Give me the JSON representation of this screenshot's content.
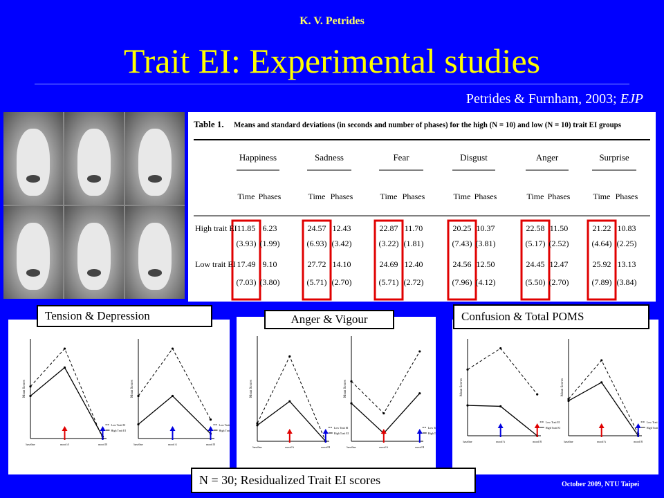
{
  "header": {
    "author": "K. V. Petrides",
    "title": "Trait EI: Experimental studies",
    "citation_text": "Petrides & Furnham, 2003; ",
    "citation_journal": "EJP"
  },
  "table": {
    "caption_prefix": "Table 1.",
    "caption": "Means and standard deviations (in seconds and number of phases) for the high (N = 10) and low (N = 10) trait EI groups",
    "emotions": [
      "Happiness",
      "Sadness",
      "Fear",
      "Disgust",
      "Anger",
      "Surprise"
    ],
    "subheaders": [
      "Time",
      "Phases"
    ],
    "rows": [
      {
        "label": "High trait EI",
        "means": [
          "11.85",
          "6.23",
          "24.57",
          "12.43",
          "22.87",
          "11.70",
          "20.25",
          "10.37",
          "22.58",
          "11.50",
          "21.22",
          "10.83"
        ],
        "sds": [
          "(3.93)",
          "(1.99)",
          "(6.93)",
          "(3.42)",
          "(3.22)",
          "(1.81)",
          "(7.43)",
          "(3.81)",
          "(5.17)",
          "(2.52)",
          "(4.64)",
          "(2.25)"
        ]
      },
      {
        "label": "Low trait EI",
        "means": [
          "17.49",
          "9.10",
          "27.72",
          "14.10",
          "24.69",
          "12.40",
          "24.56",
          "12.50",
          "24.45",
          "12.47",
          "25.92",
          "13.13"
        ],
        "sds": [
          "(7.03)",
          "(3.80)",
          "(5.71)",
          "(2.70)",
          "(5.71)",
          "(2.72)",
          "(7.96)",
          "(4.12)",
          "(5.50)",
          "(2.70)",
          "(7.89)",
          "(3.84)"
        ]
      }
    ],
    "highlight_color": "#e00000"
  },
  "labels": {
    "tension": "Tension & Depression",
    "anger": "Anger & Vigour",
    "confusion": "Confusion & Total POMS",
    "note": "N = 30; Residualized Trait EI scores"
  },
  "plots": {
    "ylabel": "Mean Scores",
    "xticks": [
      "baseline",
      "mood A",
      "mood B"
    ],
    "legend": [
      "Low Trait EI",
      "High Trait EI"
    ],
    "arrow_colors": {
      "red": "#e00000",
      "blue": "#0000e0"
    }
  },
  "footer": "October 2009,  NTU Taipei",
  "colors": {
    "background": "#0000ff",
    "title": "#ffff00",
    "author": "#ffff66"
  }
}
